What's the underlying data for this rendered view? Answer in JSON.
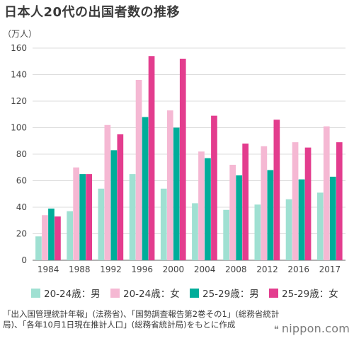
{
  "title": "日本人20代の出国者数の推移",
  "unit_label": "（万人）",
  "chart_data": {
    "type": "bar",
    "title": "日本人20代の出国者数の推移",
    "ylabel": "（万人）",
    "xlabel": "",
    "ylim": [
      0,
      160
    ],
    "yticks": [
      0,
      20,
      40,
      60,
      80,
      100,
      120,
      140,
      160
    ],
    "grid": true,
    "legend_position": "bottom",
    "categories": [
      "1984",
      "1988",
      "1992",
      "1996",
      "2000",
      "2004",
      "2008",
      "2012",
      "2016",
      "2017"
    ],
    "series": [
      {
        "name": "20-24歳：男",
        "color": "#9fe0d2",
        "values": [
          18,
          37,
          54,
          65,
          54,
          43,
          38,
          42,
          46,
          51
        ]
      },
      {
        "name": "20-24歳：女",
        "color": "#f5b8d3",
        "values": [
          34,
          70,
          102,
          136,
          113,
          82,
          72,
          86,
          89,
          101
        ]
      },
      {
        "name": "25-29歳：男",
        "color": "#00ad9a",
        "values": [
          39,
          65,
          83,
          108,
          100,
          77,
          64,
          68,
          61,
          63
        ]
      },
      {
        "name": "25-29歳：女",
        "color": "#e33d8e",
        "values": [
          33,
          65,
          95,
          154,
          152,
          109,
          88,
          106,
          85,
          89
        ]
      }
    ]
  },
  "source_text": "「出入国管理統計年報」(法務省)、「国勢調査報告第2巻その1」(総務省統計局)、「各年10月1日現在推計人口」(総務省統計局)をもとに作成",
  "logo": {
    "mark": "❝",
    "text": "nippon.com"
  }
}
